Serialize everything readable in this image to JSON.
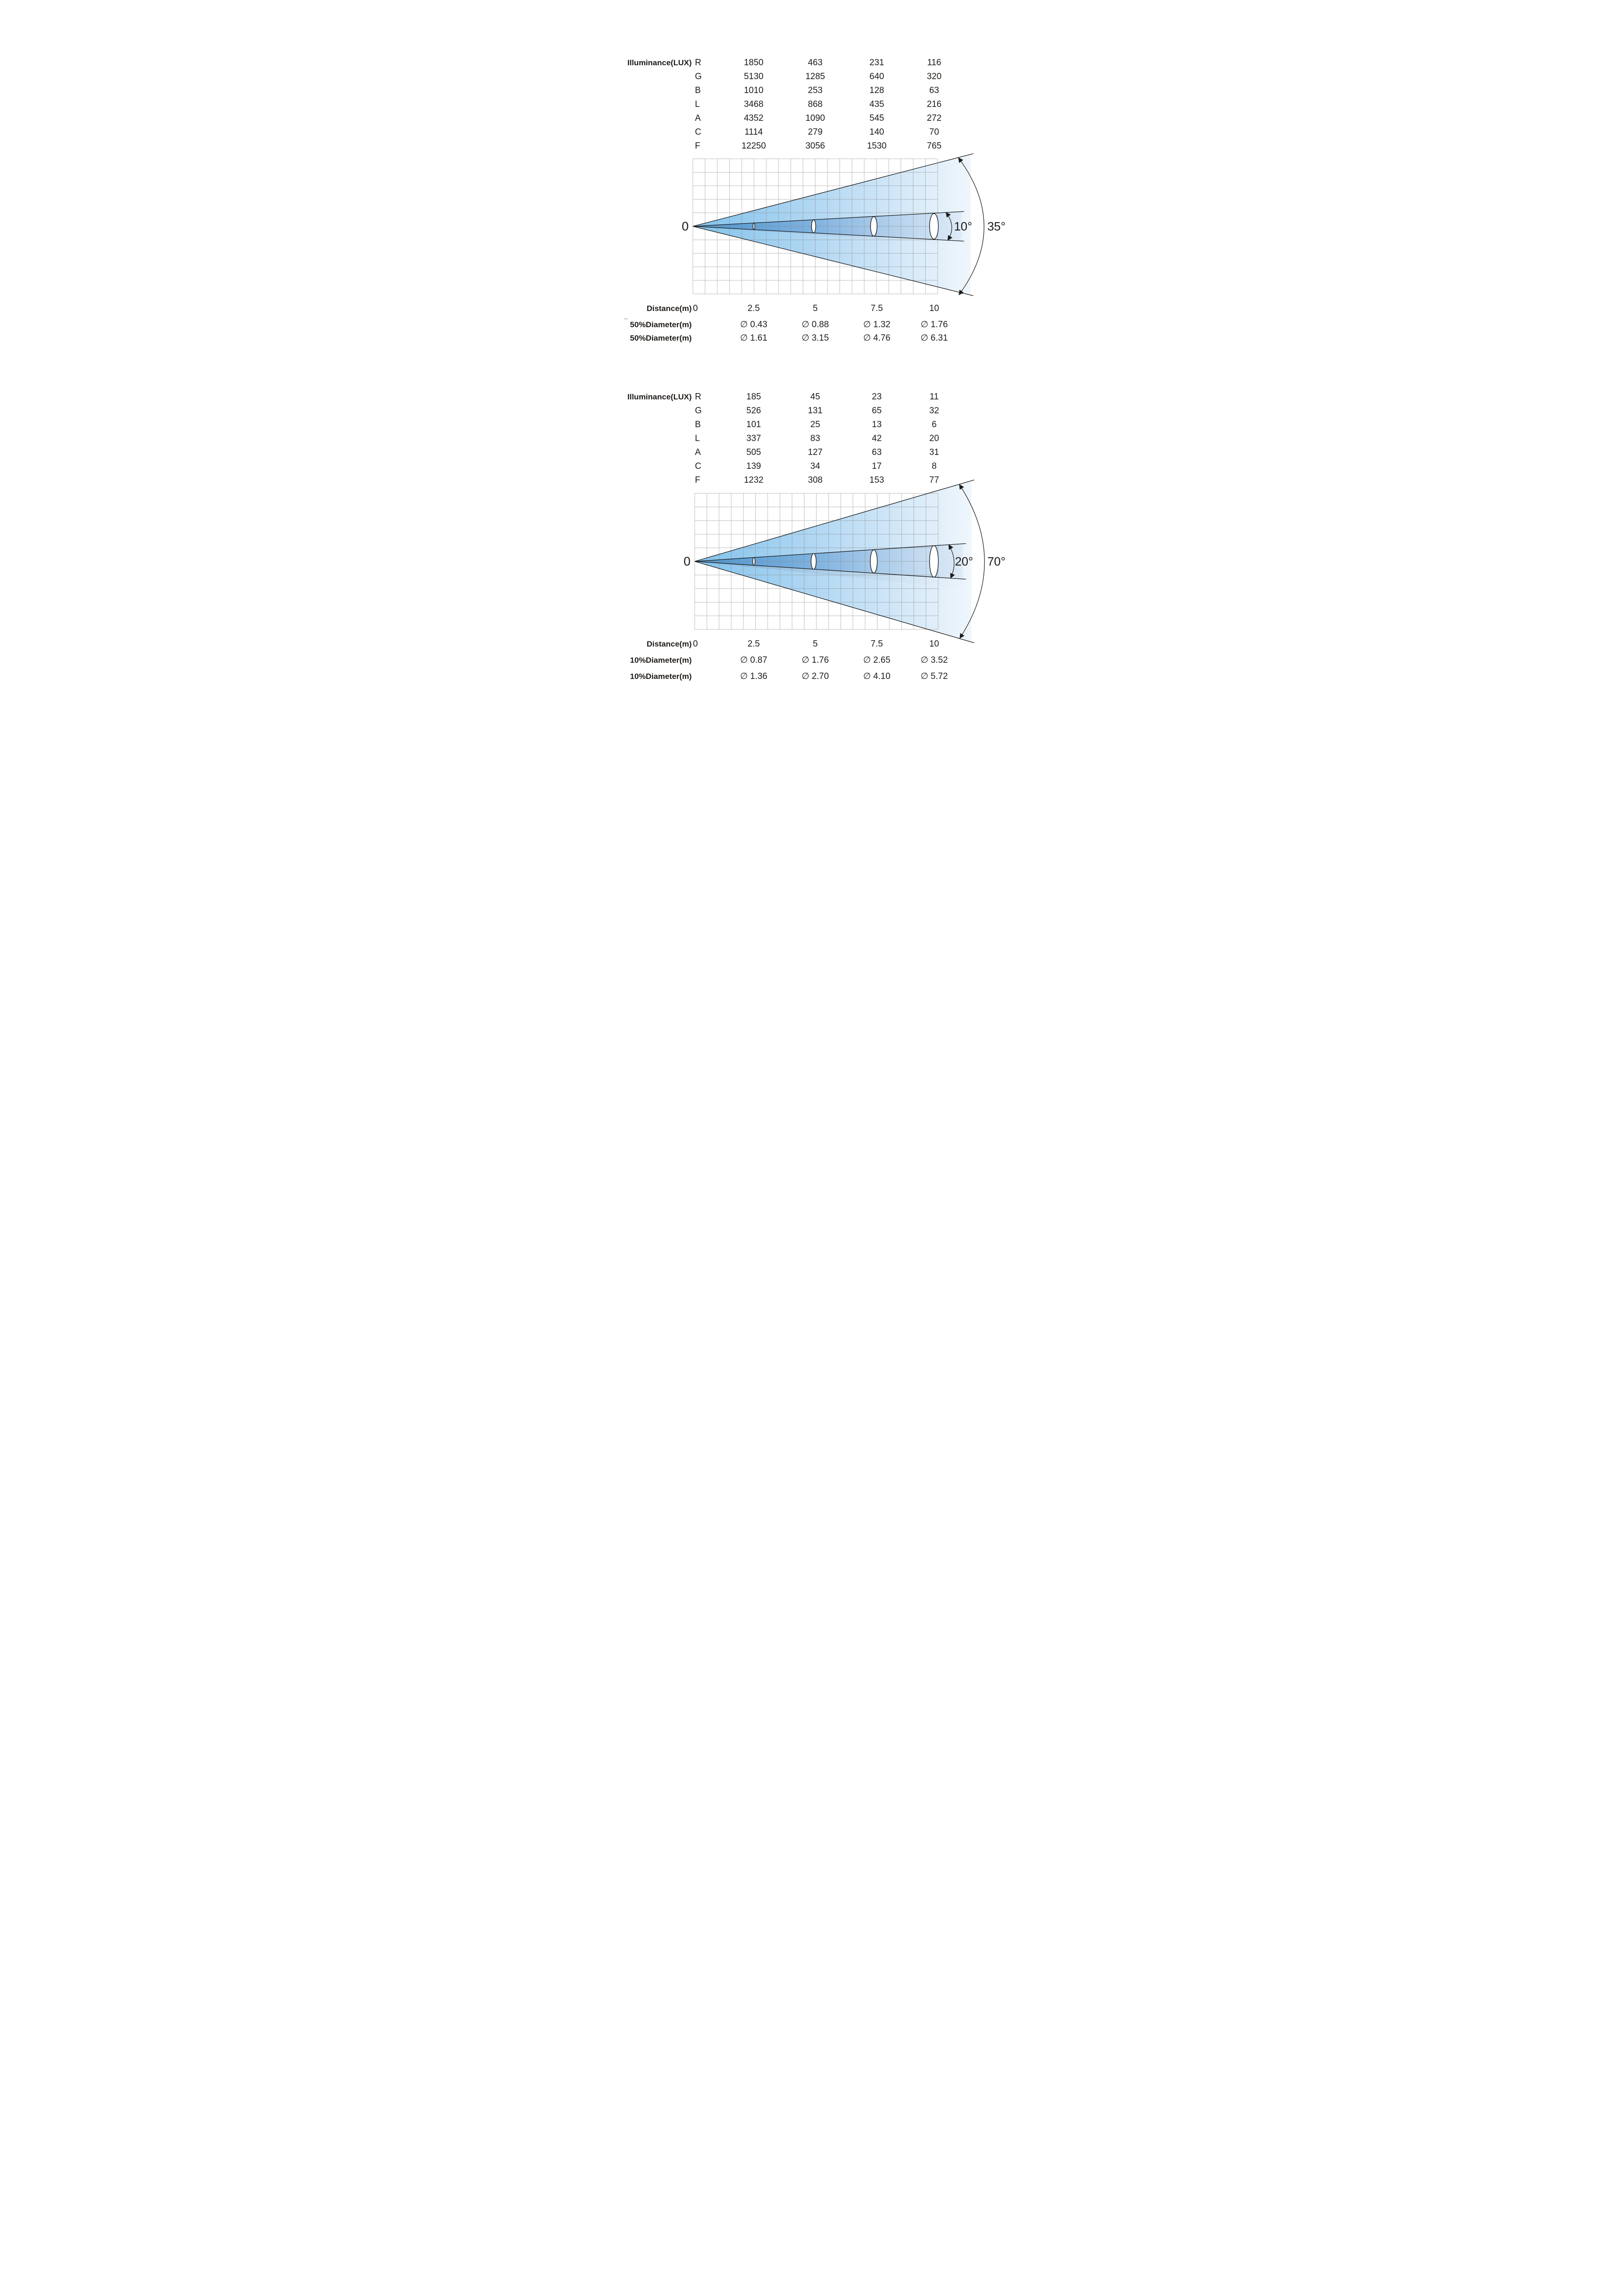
{
  "colors": {
    "text": "#1f1b18",
    "grid_line": "#888888",
    "cone_outline": "#1a1a1a",
    "outer_cone_start": "#82C2EB",
    "outer_cone_end": "#EFF6FC",
    "inner_cone_start": "#4A94D1",
    "inner_cone_end": "#DFEBF7"
  },
  "sections": [
    {
      "table": {
        "label": "Illuminance(LUX)",
        "rows": [
          {
            "key": "R",
            "values": [
              "1850",
              "463",
              "231",
              "116"
            ]
          },
          {
            "key": "G",
            "values": [
              "5130",
              "1285",
              "640",
              "320"
            ]
          },
          {
            "key": "B",
            "values": [
              "1010",
              "253",
              "128",
              "63"
            ]
          },
          {
            "key": "L",
            "values": [
              "3468",
              "868",
              "435",
              "216"
            ]
          },
          {
            "key": "A",
            "values": [
              "4352",
              "1090",
              "545",
              "272"
            ]
          },
          {
            "key": "C",
            "values": [
              "1114",
              "279",
              "140",
              "70"
            ]
          },
          {
            "key": "F",
            "values": [
              "12250",
              "3056",
              "1530",
              "765"
            ]
          }
        ]
      },
      "diagram": {
        "origin_label": "0",
        "inner_angle": "10°",
        "outer_angle": "35°"
      },
      "footer": {
        "distance_label": "Distance(m)",
        "distances": [
          "0",
          "2.5",
          "5",
          "7.5",
          "10"
        ],
        "diameter_rows": [
          {
            "label": "50%Diameter(m)",
            "values": [
              "∅ 0.43",
              "∅ 0.88",
              "∅ 1.32",
              "∅ 1.76"
            ]
          },
          {
            "label": "50%Diameter(m)",
            "values": [
              "∅ 1.61",
              "∅ 3.15",
              "∅ 4.76",
              "∅ 6.31"
            ]
          }
        ]
      }
    },
    {
      "table": {
        "label": "Illuminance(LUX)",
        "rows": [
          {
            "key": "R",
            "values": [
              "185",
              "45",
              "23",
              "11"
            ]
          },
          {
            "key": "G",
            "values": [
              "526",
              "131",
              "65",
              "32"
            ]
          },
          {
            "key": "B",
            "values": [
              "101",
              "25",
              "13",
              "6"
            ]
          },
          {
            "key": "L",
            "values": [
              "337",
              "83",
              "42",
              "20"
            ]
          },
          {
            "key": "A",
            "values": [
              "505",
              "127",
              "63",
              "31"
            ]
          },
          {
            "key": "C",
            "values": [
              "139",
              "34",
              "17",
              "8"
            ]
          },
          {
            "key": "F",
            "values": [
              "1232",
              "308",
              "153",
              "77"
            ]
          }
        ]
      },
      "diagram": {
        "origin_label": "0",
        "inner_angle": "20°",
        "outer_angle": "70°"
      },
      "footer": {
        "distance_label": "Distance(m)",
        "distances": [
          "0",
          "2.5",
          "5",
          "7.5",
          "10"
        ],
        "diameter_rows": [
          {
            "label": "10%Diameter(m)",
            "values": [
              "∅ 0.87",
              "∅ 1.76",
              "∅ 2.65",
              "∅ 3.52"
            ]
          },
          {
            "label": "10%Diameter(m)",
            "values": [
              "∅ 1.36",
              "∅ 2.70",
              "∅ 4.10",
              "∅ 5.72"
            ]
          }
        ]
      }
    }
  ]
}
